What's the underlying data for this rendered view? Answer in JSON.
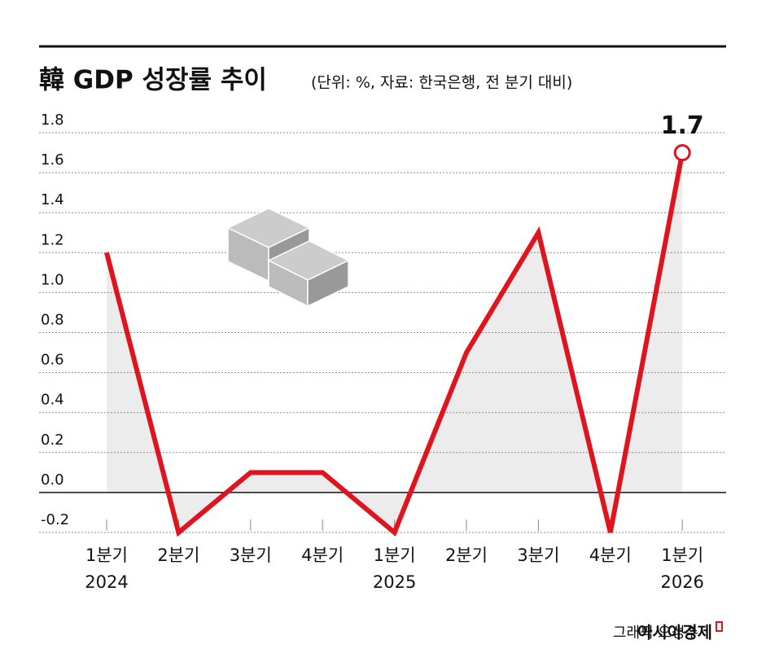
{
  "chart_data": {
    "type": "line",
    "title": "韓 GDP 성장률 추이",
    "subtitle": "(단위: %, 자료: 한국은행, 전 분기 대비)",
    "categories": [
      "1분기",
      "2분기",
      "3분기",
      "4분기",
      "1분기",
      "2분기",
      "3분기",
      "4분기",
      "1분기"
    ],
    "years": [
      "2024",
      null,
      null,
      null,
      "2025",
      null,
      null,
      null,
      "2026"
    ],
    "values": [
      1.2,
      -0.2,
      0.1,
      0.1,
      -0.2,
      0.7,
      1.3,
      -0.2,
      1.7
    ],
    "color": "#e0141e",
    "area_color": "#ececec",
    "ylim": [
      -0.2,
      1.8
    ],
    "yticks": [
      -0.2,
      {
        "value": 0,
        "label": "0.0"
      },
      0.2,
      0.4,
      0.6,
      0.8,
      {
        "value": 1,
        "label": "1.0"
      },
      1.2,
      1.4,
      1.6,
      1.8
    ],
    "grid": true,
    "credit": "그래픽 오성수",
    "brand": "아시아경제"
  }
}
